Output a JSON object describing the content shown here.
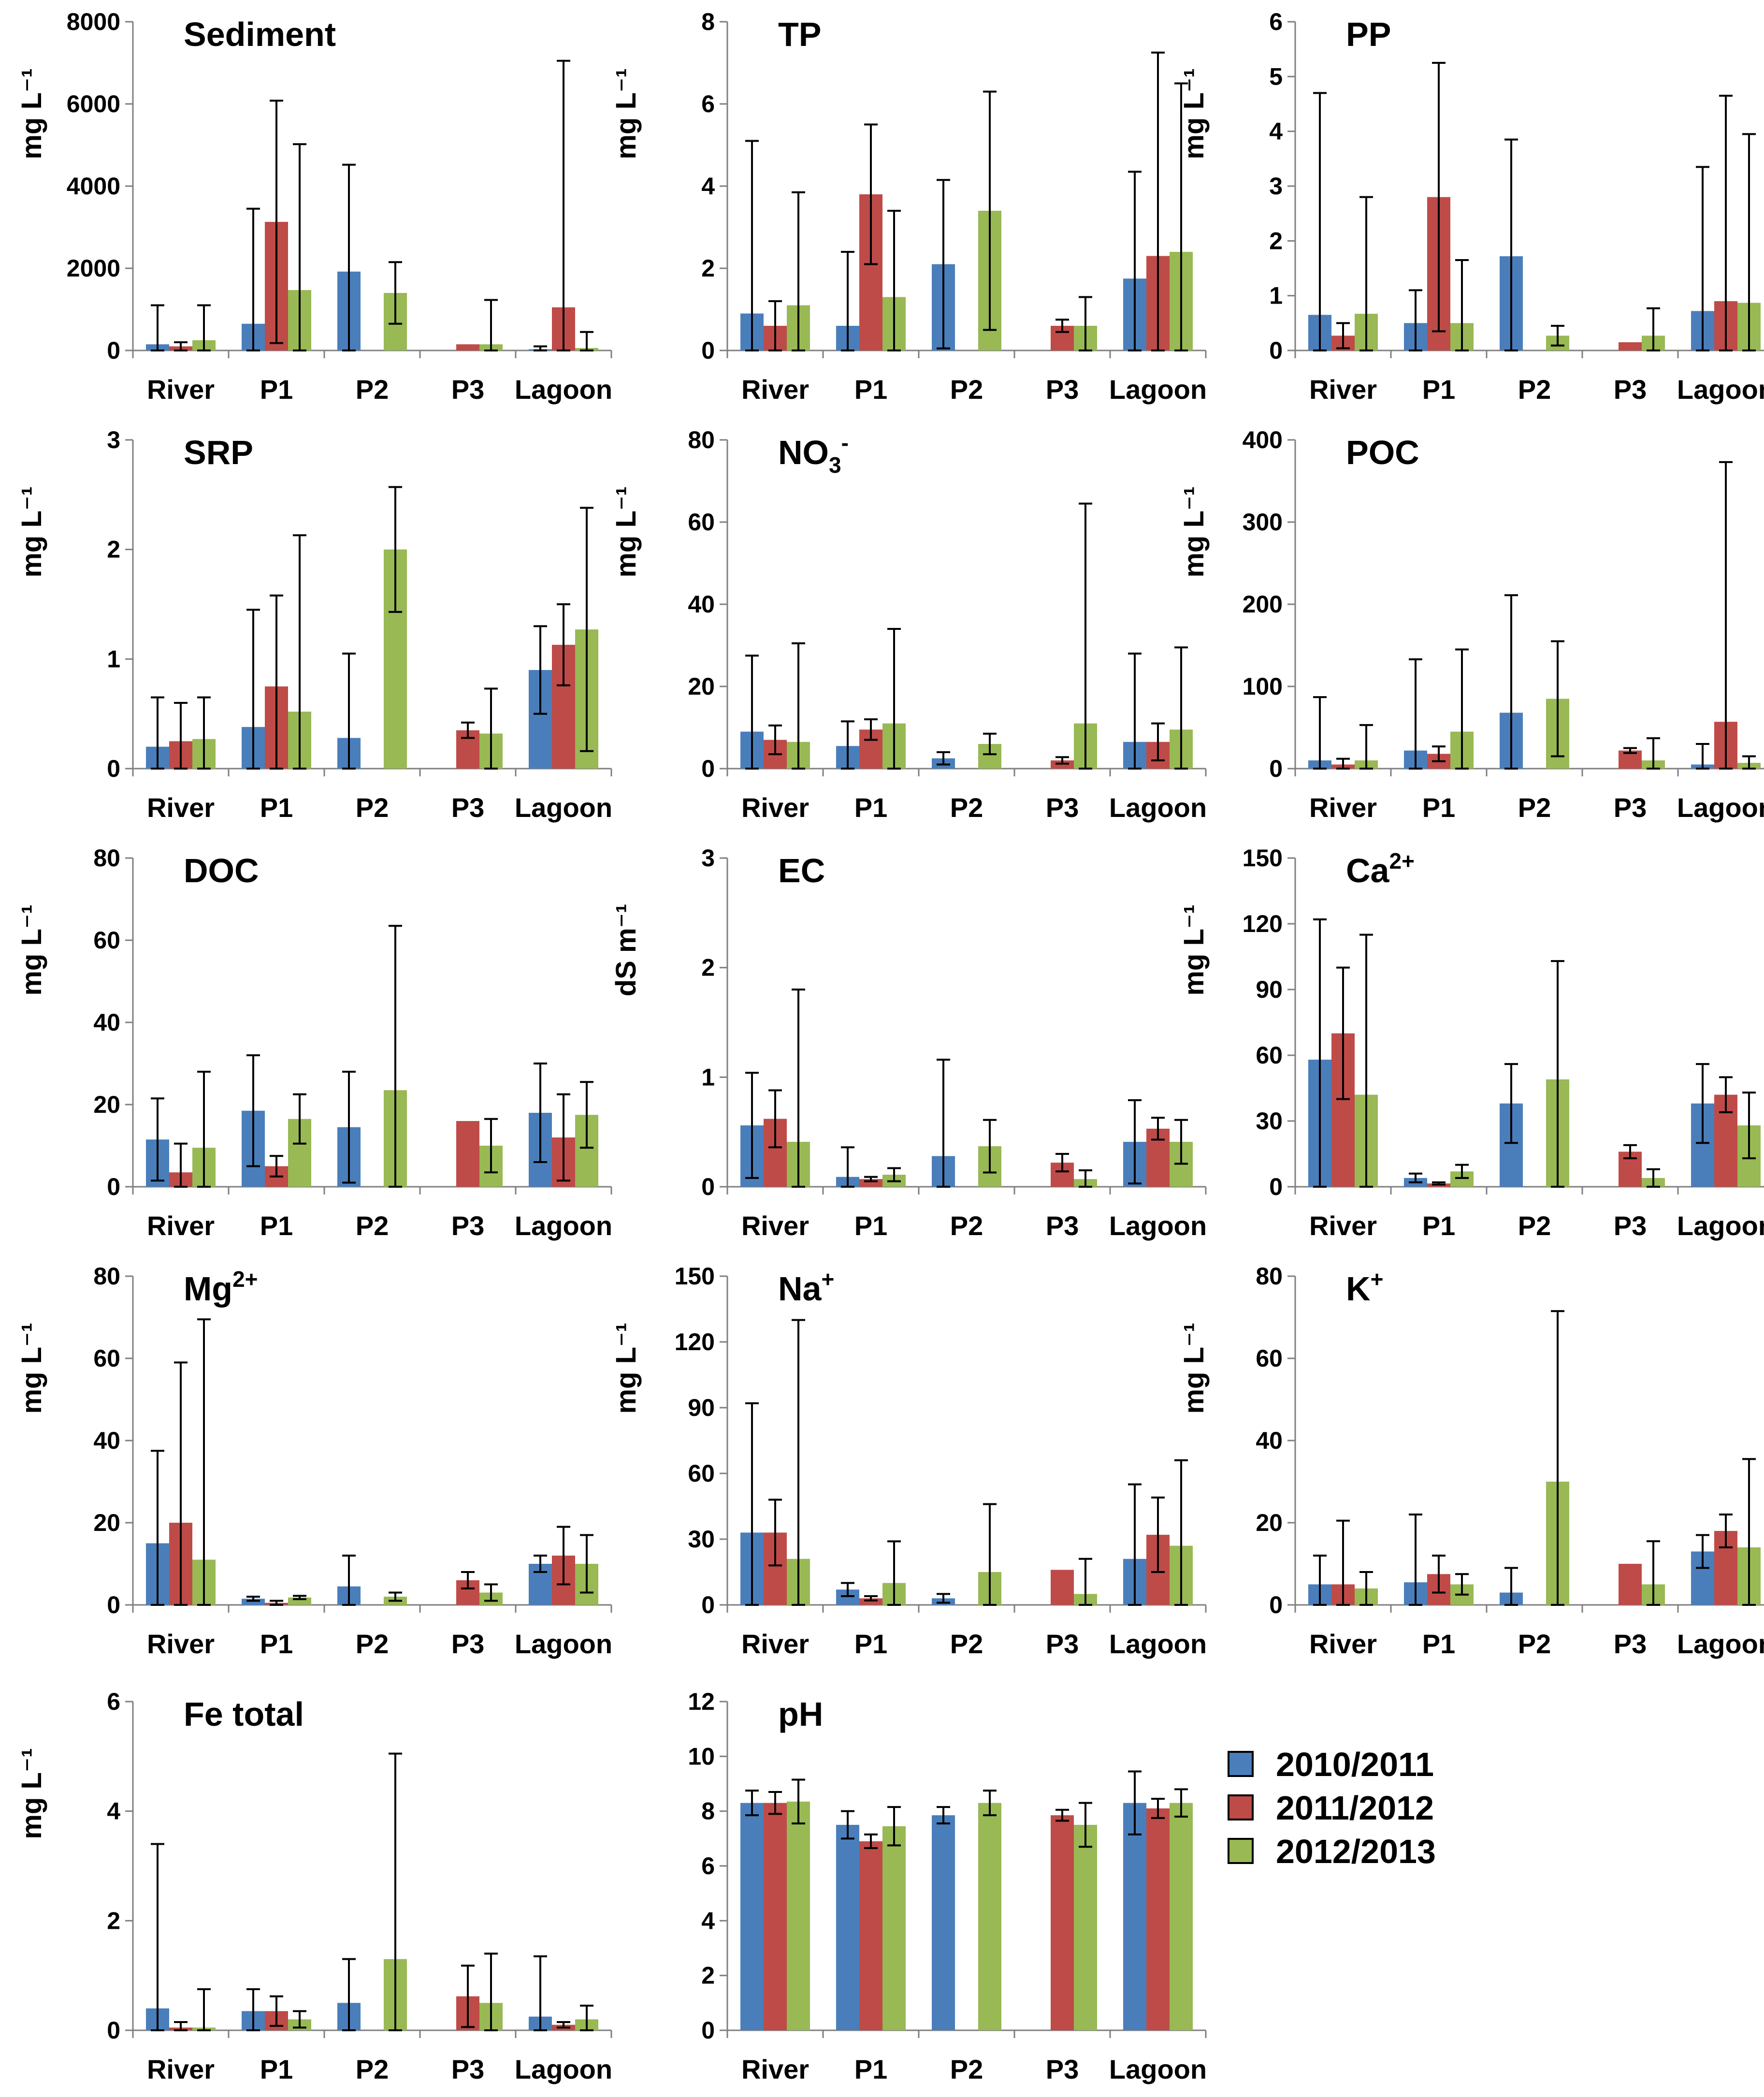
{
  "legend": [
    "2010/2011",
    "2011/2012",
    "2012/2013"
  ],
  "colors": {
    "s2010": "#4a7ebb",
    "s2011": "#be4b48",
    "s2012": "#98b954"
  },
  "chart_data": [
    {
      "type": "bar",
      "title": "Sediment",
      "ylabel": "mg L⁻¹",
      "ylim": [
        0,
        8000
      ],
      "yticks": [
        0,
        2000,
        4000,
        6000,
        8000
      ],
      "categories": [
        "River",
        "P1",
        "P2",
        "P3",
        "Lagoon"
      ],
      "series": [
        {
          "name": "2010/2011",
          "values": [
            150,
            650,
            1920,
            null,
            30
          ],
          "errors": [
            1100,
            3450,
            4520,
            null,
            100
          ]
        },
        {
          "name": "2011/2012",
          "values": [
            100,
            3130,
            null,
            150,
            1050
          ],
          "errors": [
            200,
            6080,
            null,
            150,
            7050
          ]
        },
        {
          "name": "2012/2013",
          "values": [
            250,
            1470,
            1400,
            150,
            60
          ],
          "errors": [
            1100,
            5020,
            2150,
            1230,
            450
          ]
        }
      ]
    },
    {
      "type": "bar",
      "title": "TP",
      "ylabel": "mg L⁻¹",
      "ylim": [
        0,
        8
      ],
      "yticks": [
        0,
        2,
        4,
        6,
        8
      ],
      "categories": [
        "River",
        "P1",
        "P2",
        "P3",
        "Lagoon"
      ],
      "series": [
        {
          "name": "2010/2011",
          "values": [
            0.9,
            0.6,
            2.1,
            null,
            1.75
          ],
          "errors": [
            5.1,
            2.4,
            4.15,
            null,
            4.35
          ]
        },
        {
          "name": "2011/2012",
          "values": [
            0.6,
            3.8,
            null,
            0.6,
            2.3
          ],
          "errors": [
            1.2,
            5.5,
            null,
            0.75,
            7.25
          ]
        },
        {
          "name": "2012/2013",
          "values": [
            1.1,
            1.3,
            3.4,
            0.6,
            2.4
          ],
          "errors": [
            3.85,
            3.4,
            6.3,
            1.3,
            6.5
          ]
        }
      ]
    },
    {
      "type": "bar",
      "title": "PP",
      "ylabel": "mg L⁻¹",
      "ylim": [
        0,
        6
      ],
      "yticks": [
        0,
        1,
        2,
        3,
        4,
        5,
        6
      ],
      "categories": [
        "River",
        "P1",
        "P2",
        "P3",
        "Lagoon"
      ],
      "series": [
        {
          "name": "2010/2011",
          "values": [
            0.65,
            0.5,
            1.72,
            null,
            0.72
          ],
          "errors": [
            4.7,
            1.1,
            3.85,
            null,
            3.35
          ]
        },
        {
          "name": "2011/2012",
          "values": [
            0.27,
            2.8,
            null,
            0.15,
            0.9
          ],
          "errors": [
            0.5,
            5.25,
            null,
            0.15,
            4.65
          ]
        },
        {
          "name": "2012/2013",
          "values": [
            0.67,
            0.5,
            0.27,
            0.27,
            0.87
          ],
          "errors": [
            2.8,
            1.65,
            0.45,
            0.77,
            3.95
          ]
        }
      ]
    },
    {
      "type": "bar",
      "title": "SRP",
      "ylabel": "mg L⁻¹",
      "ylim": [
        0,
        3
      ],
      "yticks": [
        0,
        1,
        2,
        3
      ],
      "categories": [
        "River",
        "P1",
        "P2",
        "P3",
        "Lagoon"
      ],
      "series": [
        {
          "name": "2010/2011",
          "values": [
            0.2,
            0.38,
            0.28,
            null,
            0.9
          ],
          "errors": [
            0.65,
            1.45,
            1.05,
            null,
            1.3
          ]
        },
        {
          "name": "2011/2012",
          "values": [
            0.25,
            0.75,
            null,
            0.35,
            1.13
          ],
          "errors": [
            0.6,
            1.58,
            null,
            0.42,
            1.5
          ]
        },
        {
          "name": "2012/2013",
          "values": [
            0.27,
            0.52,
            2.0,
            0.32,
            1.27
          ],
          "errors": [
            0.65,
            2.13,
            2.57,
            0.73,
            2.38
          ]
        }
      ]
    },
    {
      "type": "bar",
      "title": "NO3-",
      "ylabel": "mg L⁻¹",
      "ylim": [
        0,
        80
      ],
      "yticks": [
        0,
        20,
        40,
        60,
        80
      ],
      "categories": [
        "River",
        "P1",
        "P2",
        "P3",
        "Lagoon"
      ],
      "series": [
        {
          "name": "2010/2011",
          "values": [
            9,
            5.5,
            2.5,
            null,
            6.5
          ],
          "errors": [
            27.5,
            11.5,
            4,
            null,
            28
          ]
        },
        {
          "name": "2011/2012",
          "values": [
            7,
            9.5,
            null,
            2,
            6.5
          ],
          "errors": [
            10.5,
            12,
            null,
            2.8,
            11
          ]
        },
        {
          "name": "2012/2013",
          "values": [
            6.5,
            11,
            6,
            11,
            9.5
          ],
          "errors": [
            30.5,
            34,
            8.5,
            64.5,
            29.5
          ]
        }
      ]
    },
    {
      "type": "bar",
      "title": "POC",
      "ylabel": "mg L⁻¹",
      "ylim": [
        0,
        400
      ],
      "yticks": [
        0,
        100,
        200,
        300,
        400
      ],
      "categories": [
        "River",
        "P1",
        "P2",
        "P3",
        "Lagoon"
      ],
      "series": [
        {
          "name": "2010/2011",
          "values": [
            10,
            22,
            68,
            null,
            5
          ],
          "errors": [
            87,
            133,
            211,
            null,
            30
          ]
        },
        {
          "name": "2011/2012",
          "values": [
            5,
            18,
            null,
            22,
            57
          ],
          "errors": [
            12,
            27,
            null,
            25,
            373
          ]
        },
        {
          "name": "2012/2013",
          "values": [
            10,
            45,
            85,
            10,
            7
          ],
          "errors": [
            53,
            145,
            155,
            37,
            15
          ]
        }
      ]
    },
    {
      "type": "bar",
      "title": "DOC",
      "ylabel": "mg L⁻¹",
      "ylim": [
        0,
        80
      ],
      "yticks": [
        0,
        20,
        40,
        60,
        80
      ],
      "categories": [
        "River",
        "P1",
        "P2",
        "P3",
        "Lagoon"
      ],
      "series": [
        {
          "name": "2010/2011",
          "values": [
            11.5,
            18.5,
            14.5,
            null,
            18
          ],
          "errors": [
            21.5,
            32,
            28,
            null,
            30
          ]
        },
        {
          "name": "2011/2012",
          "values": [
            3.5,
            5,
            null,
            16,
            12
          ],
          "errors": [
            10.5,
            7.5,
            null,
            16,
            22.5
          ]
        },
        {
          "name": "2012/2013",
          "values": [
            9.5,
            16.5,
            23.5,
            10,
            17.5
          ],
          "errors": [
            28,
            22.5,
            63.5,
            16.5,
            25.5
          ]
        }
      ]
    },
    {
      "type": "bar",
      "title": "EC",
      "ylabel": "dS m⁻¹",
      "ylim": [
        0,
        3
      ],
      "yticks": [
        0,
        1,
        2,
        3
      ],
      "categories": [
        "River",
        "P1",
        "P2",
        "P3",
        "Lagoon"
      ],
      "series": [
        {
          "name": "2010/2011",
          "values": [
            0.56,
            0.09,
            0.28,
            null,
            0.41
          ],
          "errors": [
            1.04,
            0.36,
            1.16,
            null,
            0.79
          ]
        },
        {
          "name": "2011/2012",
          "values": [
            0.62,
            0.07,
            null,
            0.22,
            0.53
          ],
          "errors": [
            0.88,
            0.09,
            null,
            0.3,
            0.63
          ]
        },
        {
          "name": "2012/2013",
          "values": [
            0.41,
            0.11,
            0.37,
            0.07,
            0.41
          ],
          "errors": [
            1.8,
            0.17,
            0.61,
            0.15,
            0.61
          ]
        }
      ]
    },
    {
      "type": "bar",
      "title": "Ca2+",
      "ylabel": "mg L⁻¹",
      "ylim": [
        0,
        150
      ],
      "yticks": [
        0,
        30,
        60,
        90,
        120,
        150
      ],
      "categories": [
        "River",
        "P1",
        "P2",
        "P3",
        "Lagoon"
      ],
      "series": [
        {
          "name": "2010/2011",
          "values": [
            58,
            4,
            38,
            null,
            38
          ],
          "errors": [
            122,
            6,
            56,
            null,
            56
          ]
        },
        {
          "name": "2011/2012",
          "values": [
            70,
            1.5,
            null,
            16,
            42
          ],
          "errors": [
            100,
            2,
            null,
            19,
            50
          ]
        },
        {
          "name": "2012/2013",
          "values": [
            42,
            7,
            49,
            4,
            28
          ],
          "errors": [
            115,
            10,
            103,
            8,
            43
          ]
        }
      ]
    },
    {
      "type": "bar",
      "title": "Mg2+",
      "ylabel": "mg L⁻¹",
      "ylim": [
        0,
        80
      ],
      "yticks": [
        0,
        20,
        40,
        60,
        80
      ],
      "categories": [
        "River",
        "P1",
        "P2",
        "P3",
        "Lagoon"
      ],
      "series": [
        {
          "name": "2010/2011",
          "values": [
            15,
            1.5,
            4.5,
            null,
            10
          ],
          "errors": [
            37.5,
            2,
            12,
            null,
            12
          ]
        },
        {
          "name": "2011/2012",
          "values": [
            20,
            0.5,
            null,
            6,
            12
          ],
          "errors": [
            59,
            1,
            null,
            8,
            19
          ]
        },
        {
          "name": "2012/2013",
          "values": [
            11,
            1.8,
            2,
            3,
            10
          ],
          "errors": [
            69.5,
            2.2,
            3,
            5,
            17
          ]
        }
      ]
    },
    {
      "type": "bar",
      "title": "Na+",
      "ylabel": "mg L⁻¹",
      "ylim": [
        0,
        150
      ],
      "yticks": [
        0,
        30,
        60,
        90,
        120,
        150
      ],
      "categories": [
        "River",
        "P1",
        "P2",
        "P3",
        "Lagoon"
      ],
      "series": [
        {
          "name": "2010/2011",
          "values": [
            33,
            7,
            3,
            null,
            21
          ],
          "errors": [
            92,
            10,
            5,
            null,
            55
          ]
        },
        {
          "name": "2011/2012",
          "values": [
            33,
            3,
            null,
            16,
            32
          ],
          "errors": [
            48,
            4,
            null,
            16,
            49
          ]
        },
        {
          "name": "2012/2013",
          "values": [
            21,
            10,
            15,
            5,
            27
          ],
          "errors": [
            130,
            29,
            46,
            21,
            66
          ]
        }
      ]
    },
    {
      "type": "bar",
      "title": "K+",
      "ylabel": "mg L⁻¹",
      "ylim": [
        0,
        80
      ],
      "yticks": [
        0,
        20,
        40,
        60,
        80
      ],
      "categories": [
        "River",
        "P1",
        "P2",
        "P3",
        "Lagoon"
      ],
      "series": [
        {
          "name": "2010/2011",
          "values": [
            5,
            5.5,
            3,
            null,
            13
          ],
          "errors": [
            12,
            22,
            9,
            null,
            17
          ]
        },
        {
          "name": "2011/2012",
          "values": [
            5,
            7.5,
            null,
            10,
            18
          ],
          "errors": [
            20.5,
            12,
            null,
            10,
            22
          ]
        },
        {
          "name": "2012/2013",
          "values": [
            4,
            5,
            30,
            5,
            14
          ],
          "errors": [
            8,
            7.5,
            71.5,
            15.5,
            35.5
          ]
        }
      ]
    },
    {
      "type": "bar",
      "title": "Fe total",
      "ylabel": "mg L⁻¹",
      "ylim": [
        0,
        6
      ],
      "yticks": [
        0,
        2,
        4,
        6
      ],
      "categories": [
        "River",
        "P1",
        "P2",
        "P3",
        "Lagoon"
      ],
      "series": [
        {
          "name": "2010/2011",
          "values": [
            0.4,
            0.35,
            0.5,
            null,
            0.25
          ],
          "errors": [
            3.4,
            0.75,
            1.3,
            null,
            1.35
          ]
        },
        {
          "name": "2011/2012",
          "values": [
            0.05,
            0.35,
            null,
            0.62,
            0.1
          ],
          "errors": [
            0.15,
            0.62,
            null,
            1.18,
            0.15
          ]
        },
        {
          "name": "2012/2013",
          "values": [
            0.05,
            0.2,
            1.3,
            0.5,
            0.2
          ],
          "errors": [
            0.75,
            0.35,
            5.05,
            1.4,
            0.45
          ]
        }
      ]
    },
    {
      "type": "bar",
      "title": "pH",
      "ylabel": "",
      "ylim": [
        0,
        12
      ],
      "yticks": [
        0,
        2,
        4,
        6,
        8,
        10,
        12
      ],
      "categories": [
        "River",
        "P1",
        "P2",
        "P3",
        "Lagoon"
      ],
      "series": [
        {
          "name": "2010/2011",
          "values": [
            8.3,
            7.5,
            7.85,
            null,
            8.3
          ],
          "errors": [
            8.75,
            8.0,
            8.15,
            null,
            9.45
          ]
        },
        {
          "name": "2011/2012",
          "values": [
            8.3,
            6.9,
            null,
            7.85,
            8.1
          ],
          "errors": [
            8.7,
            7.15,
            null,
            8.05,
            8.45
          ]
        },
        {
          "name": "2012/2013",
          "values": [
            8.35,
            7.45,
            8.3,
            7.5,
            8.3
          ],
          "errors": [
            9.15,
            8.15,
            8.75,
            8.3,
            8.8
          ]
        }
      ]
    }
  ]
}
